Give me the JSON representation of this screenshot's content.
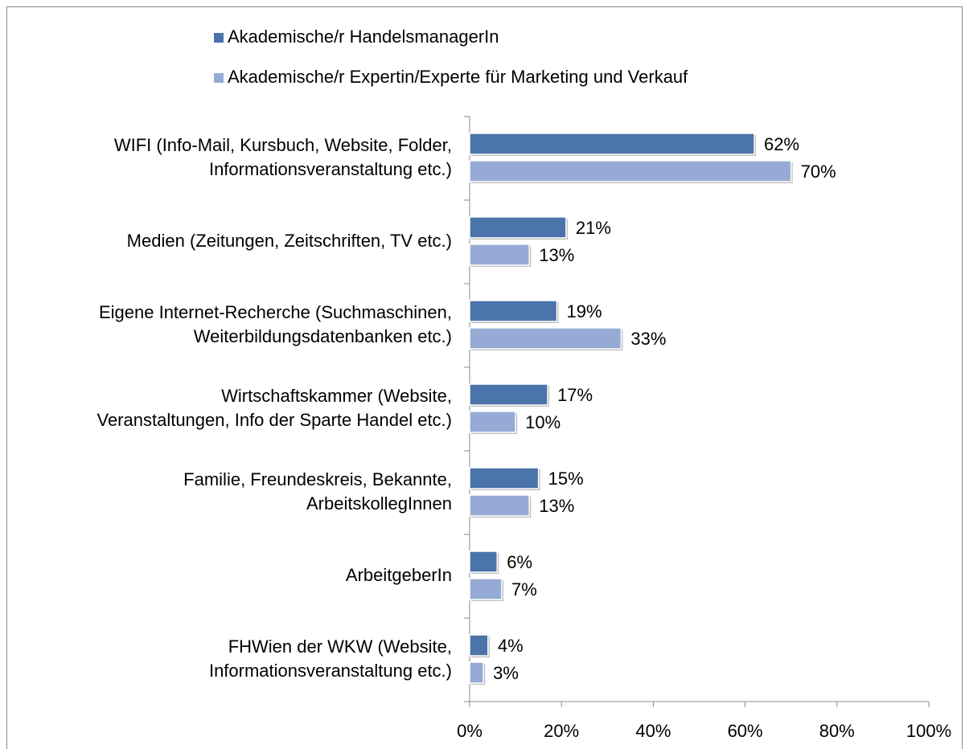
{
  "chart_data": {
    "type": "hbar",
    "categories": [
      [
        "WIFI (Info-Mail, Kursbuch, Website, Folder,",
        "Informationsveranstaltung etc.)"
      ],
      [
        "Medien (Zeitungen, Zeitschriften, TV etc.)"
      ],
      [
        "Eigene Internet-Recherche (Suchmaschinen,",
        "Weiterbildungsdatenbanken etc.)"
      ],
      [
        "Wirtschaftskammer (Website,",
        "Veranstaltungen, Info der Sparte Handel etc.)"
      ],
      [
        "Familie, Freundeskreis, Bekannte,",
        "ArbeitskollegInnen"
      ],
      [
        "ArbeitgeberIn"
      ],
      [
        "FHWien der WKW (Website,",
        "Informationsveranstaltung etc.)"
      ]
    ],
    "series": [
      {
        "name": "Akademische/r HandelsmanagerIn",
        "color": "#4a74aa",
        "values": [
          62,
          21,
          19,
          17,
          15,
          6,
          4
        ],
        "value_labels": [
          "62%",
          "21%",
          "19%",
          "17%",
          "15%",
          "6%",
          "4%"
        ]
      },
      {
        "name": "Akademische/r Expertin/Experte für Marketing und Verkauf",
        "color": "#95abd5",
        "values": [
          70,
          13,
          33,
          10,
          13,
          7,
          3
        ],
        "value_labels": [
          "70%",
          "13%",
          "33%",
          "10%",
          "13%",
          "7%",
          "3%"
        ]
      }
    ],
    "xlim": [
      0,
      100
    ],
    "xticks": [
      {
        "value": 0,
        "label": "0%"
      },
      {
        "value": 20,
        "label": "20%"
      },
      {
        "value": 40,
        "label": "40%"
      },
      {
        "value": 60,
        "label": "60%"
      },
      {
        "value": 80,
        "label": "80%"
      },
      {
        "value": 100,
        "label": "100%"
      }
    ],
    "legend": "top"
  }
}
